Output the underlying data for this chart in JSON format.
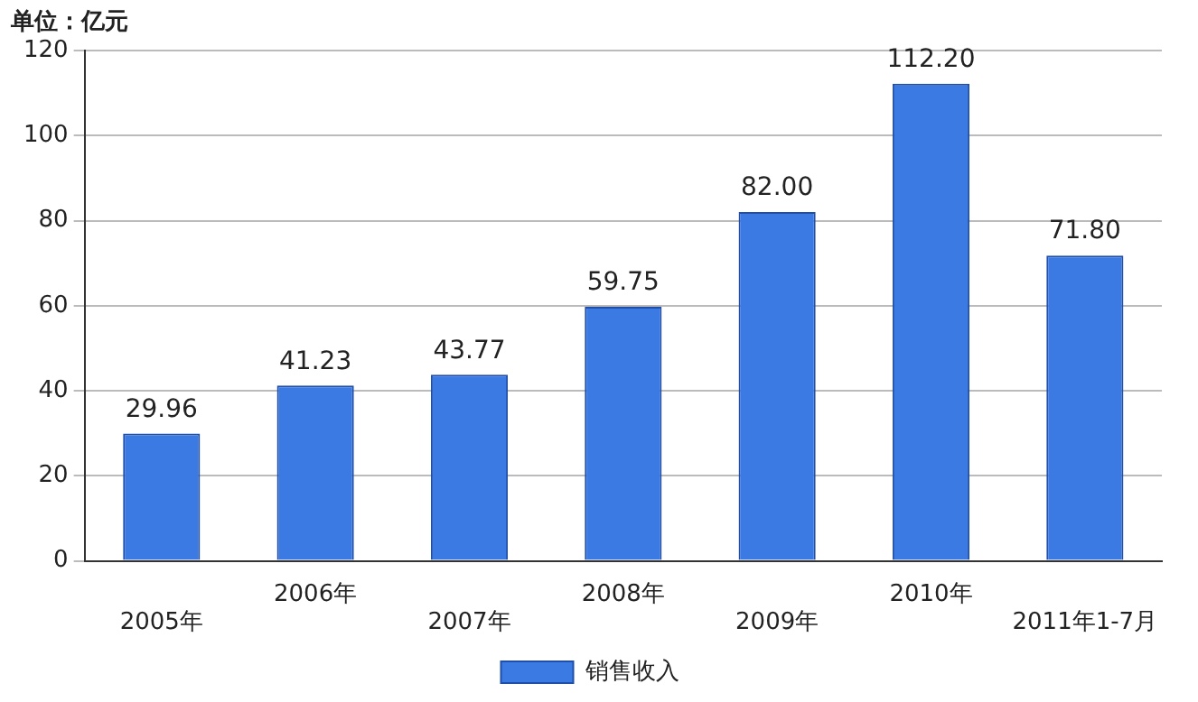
{
  "chart_data": {
    "type": "bar",
    "ylabel": "单位：亿元",
    "categories": [
      "2005年",
      "2006年",
      "2007年",
      "2008年",
      "2009年",
      "2010年",
      "2011年1-7月"
    ],
    "series": [
      {
        "name": "销售收入",
        "color": "#3b7ae3",
        "values": [
          29.96,
          41.23,
          43.77,
          59.75,
          82.0,
          112.2,
          71.8
        ]
      }
    ],
    "value_labels": [
      "29.96",
      "41.23",
      "43.77",
      "59.75",
      "82.00",
      "112.20",
      "71.80"
    ],
    "ylim": [
      0,
      120
    ],
    "yticks": [
      0,
      20,
      40,
      60,
      80,
      100,
      120
    ],
    "grid": "y",
    "legend": "bottom"
  }
}
